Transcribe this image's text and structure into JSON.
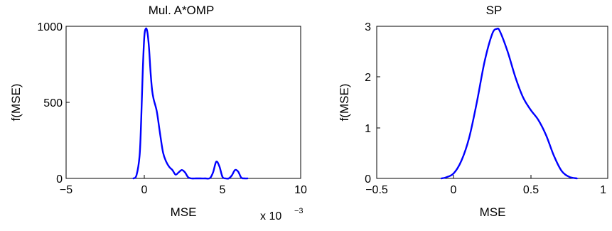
{
  "figure": {
    "line_color": "#0000ff"
  },
  "chart_data": [
    {
      "type": "line",
      "title": "Mul. A*OMP",
      "xlabel": "MSE",
      "ylabel": "f(MSE)",
      "x_multiplier": {
        "base": "x 10",
        "exponent": "−3"
      },
      "xlim": [
        -0.005,
        0.01
      ],
      "ylim": [
        0,
        1000
      ],
      "xticks": [
        -0.005,
        0,
        0.005,
        0.01
      ],
      "xtick_labels": [
        "−5",
        "0",
        "5",
        "10"
      ],
      "yticks": [
        0,
        500,
        1000
      ],
      "ytick_labels": [
        "0",
        "500",
        "1000"
      ],
      "grid": false,
      "series": [
        {
          "x": [
            -0.0007,
            -0.0005,
            -0.0003,
            -0.0002,
            -0.0001,
            0.0,
            0.0001,
            0.0002,
            0.0003,
            0.0004,
            0.0005,
            0.0006,
            0.0008,
            0.001,
            0.0012,
            0.0014,
            0.0016,
            0.0018,
            0.002,
            0.0022,
            0.0024,
            0.0026,
            0.0028,
            0.003,
            0.0033,
            0.0036,
            0.0039,
            0.0042,
            0.0044,
            0.0046,
            0.0048,
            0.005,
            0.0052,
            0.0054,
            0.0056,
            0.0058,
            0.006,
            0.0062,
            0.0064,
            0.0066
          ],
          "y": [
            0,
            20,
            150,
            380,
            700,
            930,
            985,
            960,
            860,
            700,
            580,
            520,
            440,
            300,
            170,
            110,
            75,
            55,
            25,
            40,
            55,
            40,
            8,
            0,
            0,
            0,
            0,
            2,
            40,
            110,
            80,
            10,
            0,
            0,
            20,
            55,
            45,
            5,
            0,
            0
          ]
        }
      ]
    },
    {
      "type": "line",
      "title": "SP",
      "xlabel": "MSE",
      "ylabel": "f(MSE)",
      "xlim": [
        -0.5,
        1
      ],
      "ylim": [
        0,
        3
      ],
      "xticks": [
        -0.5,
        0,
        0.5,
        1
      ],
      "xtick_labels": [
        "−0.5",
        "0",
        "0.5",
        "1"
      ],
      "yticks": [
        0,
        1,
        2,
        3
      ],
      "ytick_labels": [
        "0",
        "1",
        "2",
        "3"
      ],
      "grid": false,
      "series": [
        {
          "x": [
            -0.08,
            -0.05,
            0.0,
            0.05,
            0.1,
            0.15,
            0.2,
            0.25,
            0.28,
            0.3,
            0.35,
            0.4,
            0.45,
            0.5,
            0.55,
            0.6,
            0.65,
            0.7,
            0.75,
            0.8
          ],
          "y": [
            0,
            0.02,
            0.1,
            0.35,
            0.8,
            1.5,
            2.3,
            2.85,
            2.95,
            2.9,
            2.5,
            2.0,
            1.6,
            1.35,
            1.15,
            0.85,
            0.45,
            0.15,
            0.03,
            0
          ]
        }
      ]
    }
  ]
}
